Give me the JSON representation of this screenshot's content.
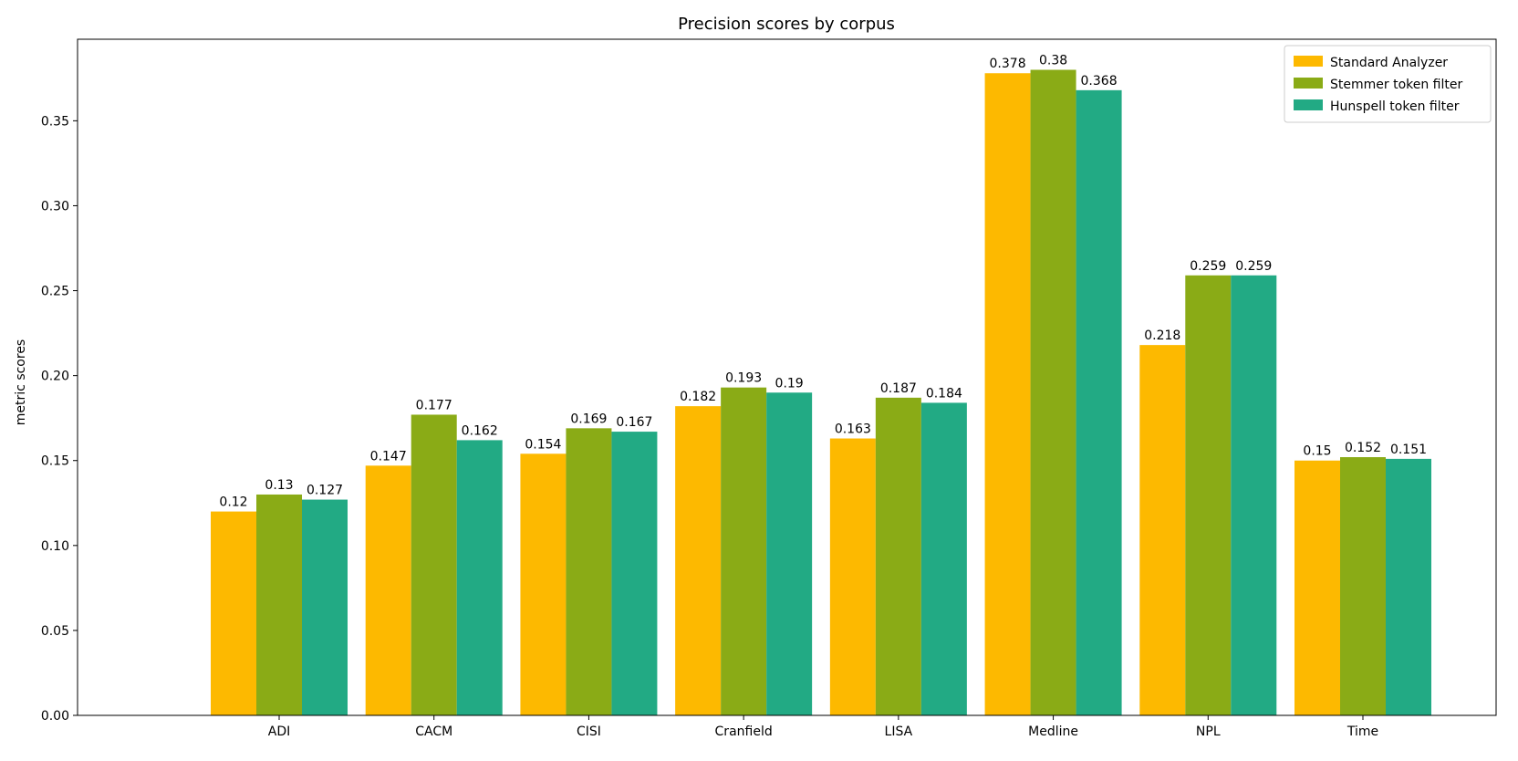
{
  "chart_data": {
    "type": "bar",
    "title": "Precision scores by corpus",
    "xlabel": "",
    "ylabel": "metric scores",
    "ylim": [
      0,
      0.398
    ],
    "yticks": [
      "0.00",
      "0.05",
      "0.10",
      "0.15",
      "0.20",
      "0.25",
      "0.30",
      "0.35"
    ],
    "categories": [
      "ADI",
      "CACM",
      "CISI",
      "Cranfield",
      "LISA",
      "Medline",
      "NPL",
      "Time"
    ],
    "series": [
      {
        "name": "Standard Analyzer",
        "color": "#fdb900",
        "values": [
          0.12,
          0.147,
          0.154,
          0.182,
          0.163,
          0.378,
          0.218,
          0.15
        ],
        "labels": [
          "0.12",
          "0.147",
          "0.154",
          "0.182",
          "0.163",
          "0.378",
          "0.218",
          "0.15"
        ]
      },
      {
        "name": "Stemmer token filter",
        "color": "#8aab16",
        "values": [
          0.13,
          0.177,
          0.169,
          0.193,
          0.187,
          0.38,
          0.259,
          0.152
        ],
        "labels": [
          "0.13",
          "0.177",
          "0.169",
          "0.193",
          "0.187",
          "0.38",
          "0.259",
          "0.152"
        ]
      },
      {
        "name": "Hunspell token filter",
        "color": "#22aa84",
        "values": [
          0.127,
          0.162,
          0.167,
          0.19,
          0.184,
          0.368,
          0.259,
          0.151
        ],
        "labels": [
          "0.127",
          "0.162",
          "0.167",
          "0.19",
          "0.184",
          "0.368",
          "0.259",
          "0.151"
        ]
      }
    ],
    "legend_position": "top-right",
    "grid": false
  }
}
